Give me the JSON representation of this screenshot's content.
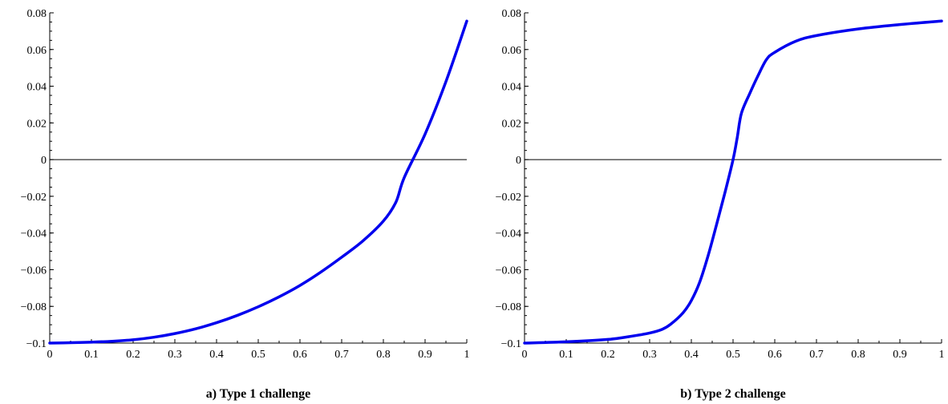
{
  "colors": {
    "curve": "#0000ee",
    "axes": "#000000"
  },
  "chart_data": [
    {
      "type": "line",
      "caption": "a)  Type 1 challenge",
      "title": "",
      "xlabel": "",
      "ylabel": "",
      "xlim": [
        0,
        1
      ],
      "ylim": [
        -0.1,
        0.08
      ],
      "xticks": [
        0,
        0.1,
        0.2,
        0.3,
        0.4,
        0.5,
        0.6,
        0.7,
        0.8,
        0.9,
        1
      ],
      "xtick_labels": [
        "0",
        "0.1",
        "0.2",
        "0.3",
        "0.4",
        "0.5",
        "0.6",
        "0.7",
        "0.8",
        "0.9",
        "1"
      ],
      "yticks": [
        0.08,
        0.06,
        0.04,
        0.02,
        0,
        -0.02,
        -0.04,
        -0.06,
        -0.08,
        -0.1
      ],
      "ytick_labels": [
        "0.08",
        "0.06",
        "0.04",
        "0.02",
        "0",
        "−0.02",
        "−0.04",
        "−0.06",
        "−0.08",
        "−0.1"
      ],
      "grid": false,
      "zero_line": true,
      "series": [
        {
          "x": [
            0,
            0.05,
            0.1,
            0.15,
            0.2,
            0.25,
            0.3,
            0.35,
            0.4,
            0.45,
            0.5,
            0.55,
            0.6,
            0.65,
            0.7,
            0.75,
            0.8,
            0.83,
            0.85,
            0.9,
            0.95,
            1
          ],
          "y": [
            -0.1,
            -0.0998,
            -0.0995,
            -0.099,
            -0.0982,
            -0.0968,
            -0.0948,
            -0.0922,
            -0.0889,
            -0.0849,
            -0.0802,
            -0.0748,
            -0.0686,
            -0.0613,
            -0.0532,
            -0.0445,
            -0.0335,
            -0.0232,
            -0.0098,
            0.0139,
            0.0425,
            0.0755
          ]
        }
      ]
    },
    {
      "type": "line",
      "caption": "b)  Type 2 challenge",
      "title": "",
      "xlabel": "",
      "ylabel": "",
      "xlim": [
        0,
        1
      ],
      "ylim": [
        -0.1,
        0.08
      ],
      "xticks": [
        0,
        0.1,
        0.2,
        0.3,
        0.4,
        0.5,
        0.6,
        0.7,
        0.8,
        0.9,
        1
      ],
      "xtick_labels": [
        "0",
        "0.1",
        "0.2",
        "0.3",
        "0.4",
        "0.5",
        "0.6",
        "0.7",
        "0.8",
        "0.9",
        "1"
      ],
      "yticks": [
        0.08,
        0.06,
        0.04,
        0.02,
        0,
        -0.02,
        -0.04,
        -0.06,
        -0.08,
        -0.1
      ],
      "ytick_labels": [
        "0.08",
        "0.06",
        "0.04",
        "0.02",
        "0",
        "−0.02",
        "−0.04",
        "−0.06",
        "−0.08",
        "−0.1"
      ],
      "grid": false,
      "zero_line": true,
      "series": [
        {
          "x": [
            0,
            0.1,
            0.2,
            0.25,
            0.3,
            0.33,
            0.35,
            0.38,
            0.4,
            0.42,
            0.44,
            0.46,
            0.48,
            0.5,
            0.51,
            0.52,
            0.54,
            0.56,
            0.58,
            0.6,
            0.65,
            0.7,
            0.8,
            0.9,
            1
          ],
          "y": [
            -0.1,
            -0.0993,
            -0.098,
            -0.0965,
            -0.0945,
            -0.0925,
            -0.0898,
            -0.0835,
            -0.0768,
            -0.0668,
            -0.0525,
            -0.0358,
            -0.0185,
            0,
            0.012,
            0.0252,
            0.036,
            0.0458,
            0.0545,
            0.0585,
            0.0645,
            0.0676,
            0.0712,
            0.0736,
            0.0755
          ]
        }
      ]
    }
  ]
}
